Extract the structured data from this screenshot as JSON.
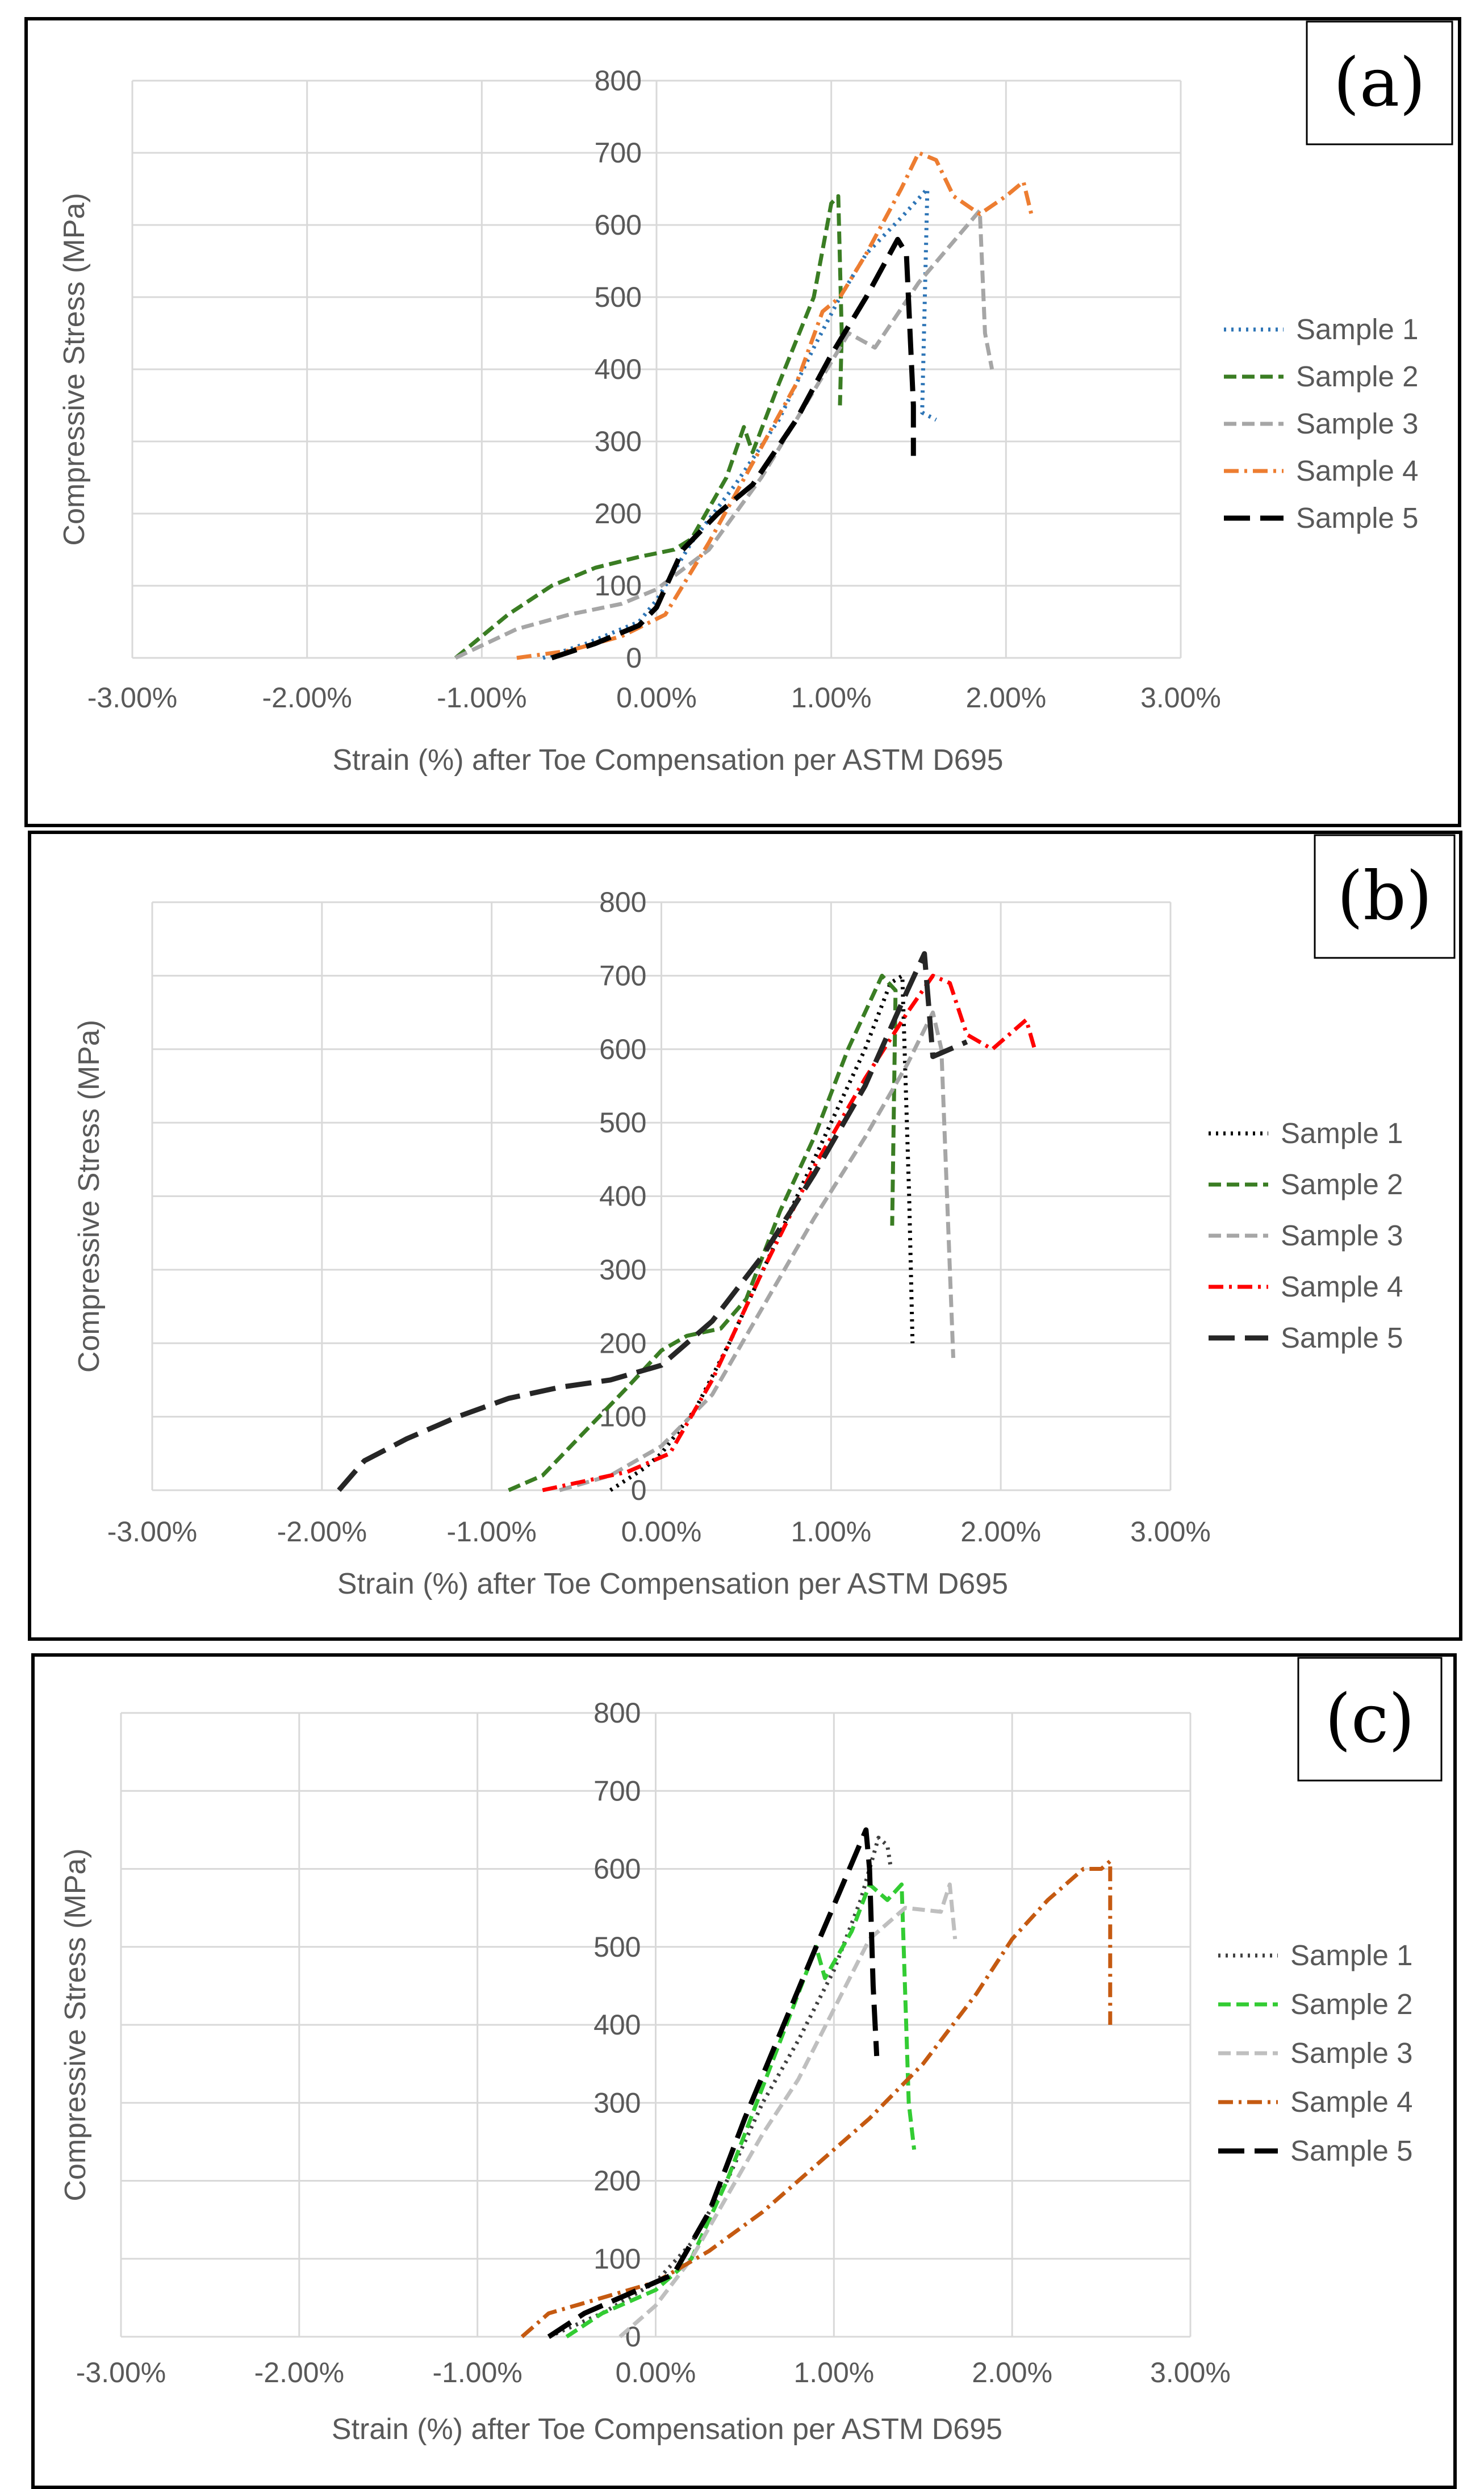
{
  "chart_data": [
    {
      "type": "line",
      "panel_label": "(a)",
      "xlabel": "Strain (%) after Toe Compensation per ASTM D695",
      "ylabel": "Compressive Stress (MPa)",
      "xlim": [
        -3,
        3
      ],
      "ylim": [
        0,
        800
      ],
      "x_ticks": [
        -3,
        -2,
        -1,
        0,
        1,
        2,
        3
      ],
      "x_tick_labels": [
        "-3.00%",
        "-2.00%",
        "-1.00%",
        "0.00%",
        "1.00%",
        "2.00%",
        "3.00%"
      ],
      "y_ticks": [
        0,
        100,
        200,
        300,
        400,
        500,
        600,
        700,
        800
      ],
      "y_tick_labels": [
        "0",
        "100",
        "200",
        "300",
        "400",
        "500",
        "600",
        "700",
        "800"
      ],
      "grid": true,
      "legend_position": "right",
      "series": [
        {
          "name": "Sample 1",
          "color": "#2e75b6",
          "dash": "dotted",
          "x": [
            -0.65,
            -0.4,
            -0.1,
            0.0,
            0.2,
            0.45,
            0.7,
            0.9,
            1.05,
            1.2,
            1.4,
            1.55,
            1.52,
            1.6
          ],
          "y": [
            0,
            20,
            50,
            80,
            160,
            240,
            330,
            430,
            500,
            560,
            610,
            650,
            340,
            330
          ]
        },
        {
          "name": "Sample 2",
          "color": "#3a7d23",
          "dash": "dashed",
          "x": [
            -1.15,
            -0.85,
            -0.6,
            -0.35,
            -0.1,
            0.1,
            0.2,
            0.4,
            0.5,
            0.55,
            0.7,
            0.9,
            1.0,
            1.04,
            1.06,
            1.05
          ],
          "y": [
            0,
            60,
            100,
            125,
            140,
            150,
            165,
            250,
            320,
            285,
            380,
            500,
            630,
            640,
            450,
            350
          ]
        },
        {
          "name": "Sample 3",
          "color": "#a6a6a6",
          "dash": "dashed",
          "x": [
            -1.15,
            -0.8,
            -0.5,
            -0.2,
            0.0,
            0.3,
            0.6,
            0.9,
            1.1,
            1.25,
            1.5,
            1.85,
            1.88,
            1.92
          ],
          "y": [
            0,
            40,
            60,
            75,
            95,
            150,
            250,
            370,
            450,
            430,
            520,
            620,
            450,
            400
          ]
        },
        {
          "name": "Sample 4",
          "color": "#ed7d31",
          "dash": "dashdot",
          "x": [
            -0.8,
            -0.5,
            -0.2,
            0.05,
            0.3,
            0.55,
            0.8,
            0.95,
            1.05,
            1.2,
            1.4,
            1.5,
            1.6,
            1.7,
            1.85,
            2.0,
            2.1,
            2.15
          ],
          "y": [
            0,
            10,
            30,
            60,
            160,
            270,
            380,
            480,
            500,
            560,
            650,
            700,
            690,
            640,
            615,
            640,
            660,
            610
          ]
        },
        {
          "name": "Sample 5",
          "color": "#000000",
          "dash": "longdash",
          "x": [
            -0.6,
            -0.35,
            -0.1,
            0.0,
            0.15,
            0.35,
            0.55,
            0.8,
            1.0,
            1.2,
            1.38,
            1.43,
            1.47,
            1.47
          ],
          "y": [
            0,
            20,
            45,
            70,
            150,
            200,
            240,
            330,
            420,
            500,
            580,
            560,
            350,
            280
          ]
        }
      ]
    },
    {
      "type": "line",
      "panel_label": "(b)",
      "xlabel": "Strain (%) after Toe Compensation per ASTM D695",
      "ylabel": "Compressive Stress (MPa)",
      "xlim": [
        -3,
        3
      ],
      "ylim": [
        0,
        800
      ],
      "x_ticks": [
        -3,
        -2,
        -1,
        0,
        1,
        2,
        3
      ],
      "x_tick_labels": [
        "-3.00%",
        "-2.00%",
        "-1.00%",
        "0.00%",
        "1.00%",
        "2.00%",
        "3.00%"
      ],
      "y_ticks": [
        0,
        100,
        200,
        300,
        400,
        500,
        600,
        700,
        800
      ],
      "y_tick_labels": [
        "0",
        "100",
        "200",
        "300",
        "400",
        "500",
        "600",
        "700",
        "800"
      ],
      "grid": true,
      "legend_position": "right",
      "series": [
        {
          "name": "Sample 1",
          "color": "#000000",
          "dash": "dotted",
          "x": [
            -0.3,
            -0.1,
            0.0,
            0.2,
            0.4,
            0.6,
            0.8,
            1.0,
            1.2,
            1.35,
            1.42,
            1.46,
            1.48
          ],
          "y": [
            0,
            30,
            50,
            110,
            200,
            300,
            400,
            500,
            600,
            690,
            700,
            400,
            200
          ]
        },
        {
          "name": "Sample 2",
          "color": "#3a7d23",
          "dash": "dashed",
          "x": [
            -0.9,
            -0.7,
            -0.45,
            -0.2,
            0.0,
            0.15,
            0.35,
            0.5,
            0.7,
            0.9,
            1.1,
            1.3,
            1.38,
            1.36
          ],
          "y": [
            0,
            20,
            80,
            140,
            190,
            210,
            220,
            260,
            380,
            480,
            600,
            700,
            680,
            360
          ]
        },
        {
          "name": "Sample 3",
          "color": "#a6a6a6",
          "dash": "dashed",
          "x": [
            -0.6,
            -0.3,
            0.0,
            0.3,
            0.6,
            0.9,
            1.2,
            1.45,
            1.6,
            1.65,
            1.7,
            1.72
          ],
          "y": [
            0,
            20,
            60,
            130,
            250,
            370,
            480,
            580,
            650,
            600,
            300,
            180
          ]
        },
        {
          "name": "Sample 4",
          "color": "#ff0000",
          "dash": "dashdot",
          "x": [
            -0.7,
            -0.5,
            -0.2,
            0.05,
            0.3,
            0.6,
            0.9,
            1.2,
            1.45,
            1.6,
            1.7,
            1.8,
            1.95,
            2.1,
            2.15,
            2.2
          ],
          "y": [
            0,
            10,
            25,
            50,
            150,
            300,
            440,
            560,
            650,
            700,
            690,
            620,
            600,
            630,
            640,
            600
          ]
        },
        {
          "name": "Sample 5",
          "color": "#262626",
          "dash": "longdash",
          "x": [
            -1.9,
            -1.75,
            -1.5,
            -1.2,
            -0.9,
            -0.6,
            -0.3,
            0.0,
            0.3,
            0.6,
            0.9,
            1.2,
            1.45,
            1.55,
            1.6,
            1.7,
            1.8
          ],
          "y": [
            0,
            40,
            70,
            100,
            125,
            140,
            150,
            170,
            230,
            320,
            430,
            550,
            680,
            730,
            590,
            600,
            610
          ]
        }
      ]
    },
    {
      "type": "line",
      "panel_label": "(c)",
      "xlabel": "Strain (%) after Toe Compensation per ASTM D695",
      "ylabel": "Compressive Stress (MPa)",
      "xlim": [
        -3,
        3
      ],
      "ylim": [
        0,
        800
      ],
      "x_ticks": [
        -3,
        -2,
        -1,
        0,
        1,
        2,
        3
      ],
      "x_tick_labels": [
        "-3.00%",
        "-2.00%",
        "-1.00%",
        "0.00%",
        "1.00%",
        "2.00%",
        "3.00%"
      ],
      "y_ticks": [
        0,
        100,
        200,
        300,
        400,
        500,
        600,
        700,
        800
      ],
      "y_tick_labels": [
        "0",
        "100",
        "200",
        "300",
        "400",
        "500",
        "600",
        "700",
        "800"
      ],
      "grid": true,
      "legend_position": "right",
      "series": [
        {
          "name": "Sample 1",
          "color": "#404040",
          "dash": "dotted",
          "x": [
            -0.6,
            -0.3,
            0.0,
            0.2,
            0.4,
            0.6,
            0.8,
            1.0,
            1.15,
            1.25,
            1.3,
            1.32
          ],
          "y": [
            0,
            30,
            70,
            120,
            200,
            300,
            380,
            470,
            560,
            640,
            630,
            600
          ]
        },
        {
          "name": "Sample 2",
          "color": "#33cc33",
          "dash": "dashed",
          "x": [
            -0.5,
            -0.3,
            0.0,
            0.2,
            0.4,
            0.6,
            0.8,
            0.9,
            0.95,
            1.1,
            1.2,
            1.3,
            1.38,
            1.42,
            1.45
          ],
          "y": [
            0,
            30,
            60,
            100,
            200,
            320,
            440,
            500,
            460,
            520,
            580,
            560,
            580,
            300,
            240
          ]
        },
        {
          "name": "Sample 3",
          "color": "#bfbfbf",
          "dash": "dashed",
          "x": [
            -0.2,
            0.0,
            0.2,
            0.4,
            0.6,
            0.8,
            1.0,
            1.2,
            1.4,
            1.6,
            1.65,
            1.68
          ],
          "y": [
            0,
            40,
            100,
            180,
            260,
            330,
            420,
            510,
            550,
            545,
            580,
            510
          ]
        },
        {
          "name": "Sample 4",
          "color": "#c55a11",
          "dash": "dashdot",
          "x": [
            -0.75,
            -0.6,
            -0.3,
            0.0,
            0.3,
            0.6,
            0.9,
            1.2,
            1.5,
            1.8,
            2.0,
            2.2,
            2.4,
            2.5,
            2.55,
            2.55
          ],
          "y": [
            0,
            30,
            50,
            70,
            110,
            160,
            220,
            280,
            350,
            440,
            510,
            560,
            600,
            600,
            610,
            400
          ]
        },
        {
          "name": "Sample 5",
          "color": "#000000",
          "dash": "longdash",
          "x": [
            -0.6,
            -0.4,
            -0.2,
            0.1,
            0.3,
            0.5,
            0.7,
            0.9,
            1.05,
            1.18,
            1.2,
            1.22,
            1.24
          ],
          "y": [
            0,
            30,
            50,
            80,
            160,
            280,
            390,
            500,
            580,
            650,
            600,
            450,
            360
          ]
        }
      ]
    }
  ]
}
